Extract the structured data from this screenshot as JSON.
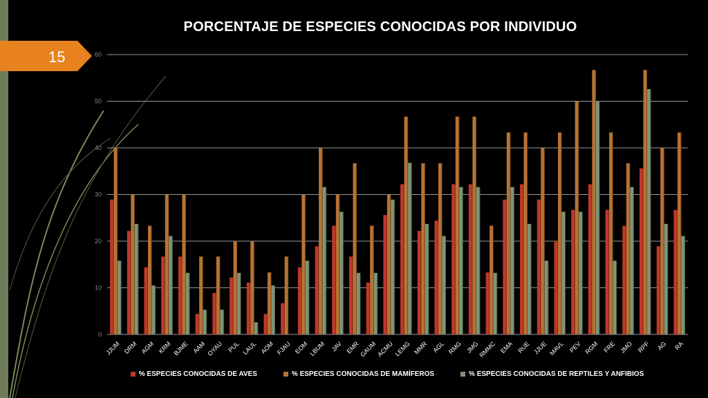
{
  "slide": {
    "number": "15"
  },
  "colors": {
    "aves": "#c0392b",
    "mamiferos": "#b87333",
    "reptiles": "#7f9477",
    "accent": "#e8821e",
    "bar_side": "#5a7a4a"
  },
  "chart_data": {
    "type": "bar",
    "title": "PORCENTAJE DE ESPECIES CONOCIDAS POR INDIVIDUO",
    "xlabel": "",
    "ylabel": "",
    "ylim": [
      0,
      60
    ],
    "yticks": [
      0,
      10,
      20,
      30,
      40,
      50,
      60
    ],
    "grid": true,
    "legend_position": "bottom",
    "categories": [
      "JJUM",
      "DRM",
      "AGM",
      "KRM",
      "BJME",
      "AAM",
      "OYAU",
      "PUL",
      "LAUL",
      "AOM",
      "FJAU",
      "EOM",
      "LBUM",
      "JAV",
      "EMR",
      "GAUM",
      "ACMU",
      "LEMG",
      "MMR",
      "AGL",
      "RMG",
      "JMG",
      "RMMC",
      "EMA",
      "RUE",
      "JJUE",
      "MAVL",
      "PEV",
      "RGM",
      "FRE",
      "JMO",
      "RPF",
      "AG",
      "RA"
    ],
    "series": [
      {
        "name": "% ESPECIES CONOCIDAS DE AVES",
        "values": [
          28.9,
          22.2,
          14.4,
          16.7,
          16.7,
          4.4,
          8.9,
          12.2,
          11.1,
          4.4,
          6.7,
          14.4,
          18.9,
          23.3,
          16.7,
          11.1,
          25.6,
          32.2,
          22.2,
          24.4,
          32.2,
          32.2,
          13.3,
          28.9,
          32.2,
          28.9,
          20.0,
          26.7,
          32.2,
          26.7,
          23.3,
          35.6,
          18.9,
          26.7
        ]
      },
      {
        "name": "% ESPECIES CONOCIDAS DE MAMÍFEROS",
        "values": [
          40.0,
          30.0,
          23.3,
          30.0,
          30.0,
          16.7,
          16.7,
          20.0,
          20.0,
          13.3,
          16.7,
          30.0,
          40.0,
          30.0,
          36.7,
          23.3,
          30.0,
          46.7,
          36.7,
          36.7,
          46.7,
          46.7,
          23.3,
          43.3,
          43.3,
          40.0,
          43.3,
          50.0,
          56.7,
          43.3,
          36.7,
          56.7,
          40.0,
          43.3
        ]
      },
      {
        "name": "% ESPECIES CONOCIDAS DE REPTILES Y ANFIBIOS",
        "values": [
          15.8,
          23.7,
          10.5,
          21.1,
          13.2,
          5.3,
          5.3,
          13.2,
          2.6,
          10.5,
          0,
          15.8,
          31.6,
          26.3,
          13.2,
          13.2,
          28.9,
          36.8,
          23.7,
          21.1,
          31.6,
          31.6,
          13.2,
          31.6,
          23.7,
          15.8,
          26.3,
          26.3,
          50.0,
          15.8,
          31.6,
          52.6,
          23.7,
          21.1
        ]
      }
    ]
  }
}
